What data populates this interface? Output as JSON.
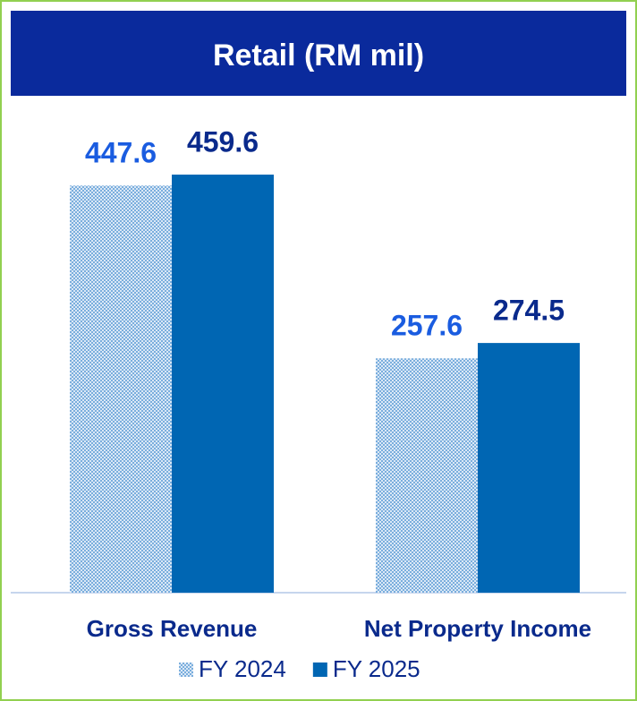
{
  "chart_data": {
    "type": "bar",
    "title": "Retail (RM mil)",
    "categories": [
      "Gross Revenue",
      "Net Property Income"
    ],
    "series": [
      {
        "name": "FY 2024",
        "color": "#5b9bd5",
        "label_color": "#1a5ce0",
        "pattern": "dots",
        "values": [
          447.6,
          257.6
        ]
      },
      {
        "name": "FY 2025",
        "color": "#0066b3",
        "label_color": "#0a2a8c",
        "values": [
          459.6,
          274.5
        ]
      }
    ],
    "ylim": [
      0,
      500
    ]
  }
}
